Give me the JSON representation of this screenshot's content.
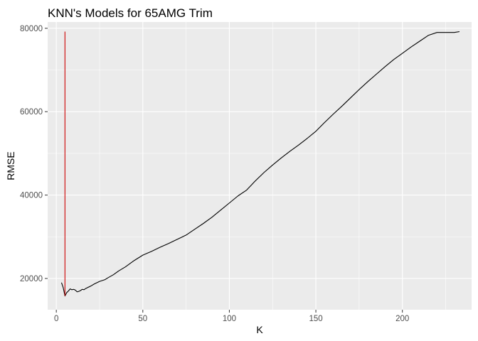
{
  "chart_data": {
    "type": "line",
    "title": "KNN's Models for 65AMG Trim",
    "xlabel": "K",
    "ylabel": "RMSE",
    "xlim": [
      -5,
      240
    ],
    "ylim": [
      12500,
      81500
    ],
    "x_ticks": [
      0,
      50,
      100,
      150,
      200
    ],
    "y_ticks": [
      20000,
      40000,
      60000,
      80000
    ],
    "x_tick_labels": [
      "0",
      "50",
      "100",
      "150",
      "200"
    ],
    "y_tick_labels": [
      "20000",
      "40000",
      "60000",
      "80000"
    ],
    "grid": true,
    "background": "#ebebeb",
    "series": [
      {
        "color": "#000000",
        "x": [
          3,
          4,
          5,
          6,
          7,
          8,
          9,
          10,
          11,
          12,
          13,
          14,
          15,
          16,
          17,
          18,
          20,
          22,
          25,
          28,
          30,
          33,
          36,
          40,
          45,
          50,
          55,
          60,
          65,
          70,
          75,
          80,
          85,
          90,
          95,
          100,
          105,
          110,
          115,
          120,
          125,
          130,
          135,
          140,
          145,
          150,
          155,
          160,
          165,
          170,
          175,
          180,
          185,
          190,
          195,
          200,
          205,
          210,
          215,
          220,
          225,
          230,
          233
        ],
        "y": [
          19000,
          17800,
          15800,
          16600,
          17000,
          17500,
          17300,
          17400,
          17200,
          16800,
          16900,
          17100,
          17400,
          17300,
          17600,
          17800,
          18200,
          18700,
          19300,
          19700,
          20200,
          20900,
          21800,
          22800,
          24300,
          25600,
          26500,
          27500,
          28400,
          29400,
          30400,
          31800,
          33200,
          34700,
          36400,
          38100,
          39800,
          41200,
          43400,
          45400,
          47200,
          48900,
          50500,
          52000,
          53600,
          55300,
          57400,
          59400,
          61300,
          63300,
          65300,
          67200,
          69000,
          70800,
          72500,
          74000,
          75500,
          76900,
          78300,
          79000,
          79000,
          79000,
          79200
        ]
      },
      {
        "color": "#cc0000",
        "x": [
          5,
          5
        ],
        "y": [
          15800,
          79200
        ]
      }
    ]
  }
}
